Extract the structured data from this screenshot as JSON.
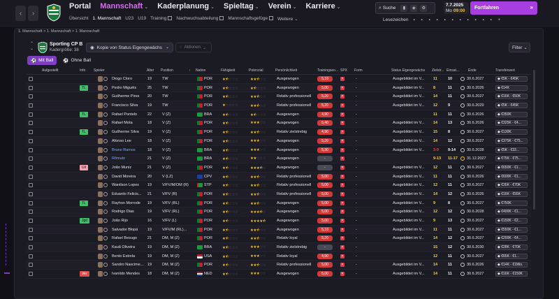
{
  "nav": {
    "items": [
      "Portal",
      "Mannschaft",
      "Kaderplanung",
      "Spieltag",
      "Verein",
      "Karriere"
    ],
    "active": 1,
    "subitems": [
      "Übersicht",
      "1. Mannschaft",
      "U23",
      "U19",
      "Training",
      "Nachwuchsabteilung",
      "Mannschaftsgefüge",
      "Weitere"
    ],
    "search_label": "Suche",
    "date": "7.7.2025",
    "day": "Mo",
    "time": "09:00",
    "continue_label": "Fortfahren",
    "bookmarks_label": "Lesezeichen"
  },
  "breadcrumb": "1. Mannschaft  >  1. Mannschaft  >  1. Mannschaft",
  "team": {
    "name": "Sporting CP B",
    "squad_size_label": "Kadergröße: 38",
    "view_label": "Kopie von Status Eigengewächs",
    "actions_label": "Aktionen",
    "filter_label": "Filter",
    "tab_with_ball": "Mit Ball",
    "tab_without_ball": "Ohne Ball"
  },
  "columns": [
    "Aufgestellt",
    "Info",
    "Spieler",
    "Alter",
    "Position",
    "Nation",
    "Fähigkeit",
    "Potenzial",
    "Persönlichkeit",
    "Trainingseo...",
    "SPX",
    "Form",
    "Status Eigengewächs",
    "Zielstr...",
    "Einsat...",
    "Ende",
    "Transferwert"
  ],
  "colors": {
    "accent": "#a73fe0",
    "active_nav": "#d66cf0",
    "yellow": "#f0c030",
    "red": "#d13a3a"
  },
  "players": [
    {
      "info": "",
      "name": "Diogo Cloro",
      "age": "19",
      "pos": "TW",
      "nat": "POR",
      "flag": "por",
      "abil": 1.5,
      "pot": 2.5,
      "pers": "Ausgewogen",
      "train": "5,10",
      "form": "-",
      "status": "Ausgebildet im V...",
      "zf": "11",
      "zfc": "y",
      "ein": "10",
      "einc": "w",
      "ende": "30.6.2027",
      "tw": "€5K - €45K"
    },
    {
      "info": "TL",
      "name": "Pedro Miguéis",
      "age": "25",
      "pos": "TW",
      "nat": "POR",
      "flag": "por",
      "abil": 1.5,
      "pot": 1.5,
      "pers": "Ausgewogen",
      "train": "5,00",
      "form": "-",
      "status": "Ausgebildet im V...",
      "zf": "8",
      "zfc": "y",
      "ein": "11",
      "einc": "w",
      "ende": "30.6.2026",
      "tw": "€14K"
    },
    {
      "info": "",
      "name": "Guilherme Pires",
      "age": "20",
      "pos": "TW",
      "nat": "POR",
      "flag": "por",
      "abil": 1.5,
      "pot": 2.5,
      "pers": "Relativ professionell",
      "train": "5,20",
      "form": "-",
      "status": "Ausgebildet im V...",
      "zf": "14",
      "zfc": "y",
      "ein": "11",
      "einc": "w",
      "ende": "30.6.2027",
      "tw": "€16K - €50K"
    },
    {
      "info": "",
      "name": "Francisco Silva",
      "age": "19",
      "pos": "TW",
      "nat": "POR",
      "flag": "por",
      "abil": 1,
      "pot": 2.5,
      "pers": "Relativ professionell",
      "train": "5,20",
      "form": "-",
      "status": "Ausgebildet im V...",
      "zf": "12",
      "zfc": "y",
      "ein": "9",
      "einc": "w",
      "ende": "30.6.2029",
      "tw": "€5K - €45K"
    },
    {
      "info": "TL",
      "name": "Rafael Pontelo",
      "age": "22",
      "pos": "V (Z)",
      "nat": "BRA",
      "flag": "bra",
      "abil": 1.5,
      "pot": 1.5,
      "pers": "Ausgewogen",
      "train": "4,90",
      "form": "-",
      "status": "",
      "zf": "11",
      "zfc": "y",
      "ein": "11",
      "einc": "w",
      "ende": "30.6.2026",
      "tw": "€350K"
    },
    {
      "info": "",
      "name": "Rafael Mota",
      "age": "18",
      "pos": "V (Z)",
      "nat": "POR",
      "flag": "por",
      "abil": 1.5,
      "pot": 3,
      "pers": "Ausgewogen",
      "train": "5,40",
      "form": "-",
      "status": "Ausgebildet im V...",
      "zf": "14",
      "zfc": "y",
      "ein": "13",
      "einc": "w",
      "ende": "30.6.2026",
      "tw": "€325K - €4..."
    },
    {
      "info": "TL",
      "name": "Guilherme Silva",
      "age": "19",
      "pos": "V (Z)",
      "nat": "POR",
      "flag": "por",
      "abil": 1.5,
      "pot": 2.5,
      "pers": "Relativ zielstrebig",
      "train": "4,90",
      "form": "-",
      "status": "Ausgebildet im V...",
      "zf": "15",
      "zfc": "y",
      "ein": "8",
      "einc": "w",
      "ende": "30.6.2027",
      "tw": "€130K"
    },
    {
      "info": "",
      "name": "Afonso Lee",
      "age": "18",
      "pos": "V (Z)",
      "nat": "POR",
      "flag": "por",
      "abil": 1.5,
      "pot": 3,
      "pers": "Ausgewogen",
      "train": "5,20",
      "form": "-",
      "status": "Ausgebildet im V...",
      "zf": "14",
      "zfc": "y",
      "ein": "12",
      "einc": "w",
      "ende": "30.6.2027",
      "tw": "€375K - €75..."
    },
    {
      "info": "",
      "name": "Bruno Ramos",
      "age": "18",
      "pos": "V (Z)",
      "nat": "BRA",
      "flag": "bra",
      "abil": 1.5,
      "pot": 3,
      "pers": "Ausgewogen",
      "train": "5,30",
      "form": "-",
      "status": "Ausgebildet im V...",
      "zf": "3-9",
      "zfc": "r",
      "ein": "9-14",
      "einc": "w",
      "ende": "30.6.2028",
      "tw": "€5K - €32..."
    },
    {
      "info": "",
      "name": "Rômulo",
      "age": "21",
      "pos": "V (Z)",
      "nat": "BRA",
      "flag": "bra",
      "abil": 1.5,
      "pot": 2,
      "pers": "Ausgewogen",
      "train": "-",
      "form": "-",
      "status": "",
      "zf": "9-13",
      "zfc": "y",
      "ein": "11-17",
      "einc": "y",
      "ende": "31.12.2027",
      "tw": "€75K - €75..."
    },
    {
      "info": "Url",
      "name": "João Muniz",
      "age": "21",
      "pos": "V (Z)",
      "nat": "POR",
      "flag": "por",
      "abil": 1.5,
      "pot": 3.5,
      "pers": "Ausgewogen",
      "train": "-",
      "form": "-",
      "status": "Ausgebildet im V...",
      "zf": "12",
      "zfc": "y",
      "ein": "11",
      "einc": "w",
      "ende": "30.6.2027",
      "tw": "€650K - €1..."
    },
    {
      "info": "",
      "name": "David Moreira",
      "age": "20",
      "pos": "V (LZ)",
      "nat": "CPV",
      "flag": "cpv",
      "abil": 1.5,
      "pot": 2.5,
      "pers": "Relativ professionell",
      "train": "5,00",
      "form": "-",
      "status": "Ausgebildet im V...",
      "zf": "11",
      "zfc": "y",
      "ein": "11",
      "einc": "w",
      "ende": "30.6.2026",
      "tw": "€600K - €1..."
    },
    {
      "info": "",
      "name": "Wanilson Lopes",
      "age": "19",
      "pos": "V/FV/M/OM (R)",
      "nat": "STP",
      "flag": "stp",
      "abil": 1.5,
      "pot": 2.5,
      "pers": "Relativ professionell",
      "train": "5,00",
      "form": "-",
      "status": "Ausgebildet im V...",
      "zf": "12",
      "zfc": "y",
      "ein": "11",
      "einc": "w",
      "ende": "30.6.2027",
      "tw": "€35K - €70K"
    },
    {
      "info": "",
      "name": "Eduardo Felicis...",
      "age": "21",
      "pos": "V/FV (R)",
      "nat": "POR",
      "flag": "por",
      "abil": 1.5,
      "pot": 2.5,
      "pers": "Relativ professionell",
      "train": "5,00",
      "form": "-",
      "status": "Ausgebildet im V...",
      "zf": "14",
      "zfc": "y",
      "ein": "12",
      "einc": "w",
      "ende": "30.6.2026",
      "tw": "€16K - €55K"
    },
    {
      "info": "TL",
      "name": "Rayhon Morrode",
      "age": "19",
      "pos": "V/FV (RL)",
      "nat": "POR",
      "flag": "por",
      "abil": 1.5,
      "pot": 2.5,
      "pers": "Ausgewogen",
      "train": "5,00",
      "form": "-",
      "status": "Ausgebildet im V...",
      "zf": "9",
      "zfc": "y",
      "ein": "8",
      "einc": "w",
      "ende": "30.6.2027",
      "tw": "€750K"
    },
    {
      "info": "",
      "name": "Rodrigo Dias",
      "age": "19",
      "pos": "V/FV (RL)",
      "nat": "POR",
      "flag": "por",
      "abil": 1.5,
      "pot": 3.5,
      "pers": "Ausgewogen",
      "train": "5,00",
      "form": "-",
      "status": "Ausgebildet im V...",
      "zf": "12",
      "zfc": "y",
      "ein": "12",
      "einc": "w",
      "ende": "30.6.2028",
      "tw": "€400K - €1..."
    },
    {
      "info": "Jgd",
      "name": "João Rijo",
      "age": "16",
      "pos": "V/FV (L)",
      "nat": "POR",
      "flag": "por",
      "abil": 1.5,
      "pot": 4.5,
      "pers": "Ausgewogen",
      "train": "5,00",
      "form": "-",
      "status": "Ausgebildet im V...",
      "zf": "9",
      "zfc": "y",
      "ein": "13",
      "einc": "w",
      "ende": "30.6.2027",
      "tw": "€150K - €2..."
    },
    {
      "info": "",
      "name": "Salvador Blopá",
      "age": "19",
      "pos": "V/FV/M (RL)...",
      "nat": "POR",
      "flag": "por",
      "abil": 1.5,
      "pot": 2.5,
      "pers": "Ausgewogen",
      "train": "5,10",
      "form": "-",
      "status": "Ausgebildet im V...",
      "zf": "11",
      "zfc": "y",
      "ein": "11",
      "einc": "w",
      "ende": "30.6.2027",
      "tw": "€550K - €1..."
    },
    {
      "info": "",
      "name": "Rafael Besugo",
      "age": "21",
      "pos": "DM, M (Z)",
      "nat": "POR",
      "flag": "por",
      "abil": 1.5,
      "pot": 2.5,
      "pers": "Relativ loyal",
      "train": "5,20",
      "form": "-",
      "status": "Ausgebildet im V...",
      "zf": "14",
      "zfc": "y",
      "ein": "12",
      "einc": "w",
      "ende": "30.6.2027",
      "tw": "€200K - €4..."
    },
    {
      "info": "",
      "name": "Kauã Oliveira",
      "age": "19",
      "pos": "DM, M (Z)",
      "nat": "BRA",
      "flag": "bra",
      "abil": 1.5,
      "pot": 3,
      "pers": "Relativ zielstrebig",
      "train": "-",
      "form": "-",
      "status": "",
      "zf": "15",
      "zfc": "y",
      "ein": "12",
      "einc": "w",
      "ende": "30.6.2030",
      "tw": "€28K - €70K"
    },
    {
      "info": "",
      "name": "Bento Estrela",
      "age": "19",
      "pos": "DM, M (Z)",
      "nat": "USA",
      "flag": "usa",
      "abil": 1.5,
      "pot": 3,
      "pers": "Relativ loyal",
      "train": "4,90",
      "form": "-",
      "status": "",
      "zf": "12",
      "zfc": "y",
      "ein": "11",
      "einc": "w",
      "ende": "30.6.2027",
      "tw": "€65K - €1..."
    },
    {
      "info": "",
      "name": "Sandro Nascime...",
      "age": "19",
      "pos": "DM, M (Z)",
      "nat": "POR",
      "flag": "por",
      "abil": 1.5,
      "pot": 2.5,
      "pers": "Relativ professionell",
      "train": "5,00",
      "form": "-",
      "status": "Ausgebildet im V...",
      "zf": "14",
      "zfc": "y",
      "ein": "11",
      "einc": "w",
      "ende": "30.6.2026",
      "tw": "€14K - €1Mio."
    },
    {
      "info": "Ver",
      "name": "Ivanildo Mendes",
      "age": "18",
      "pos": "DM, M (Z)",
      "nat": "NED",
      "flag": "ned",
      "abil": 1.5,
      "pot": 3,
      "pers": "Ausgewogen",
      "train": "5,00",
      "form": "-",
      "status": "Ausgebildet im V...",
      "zf": "14",
      "zfc": "y",
      "ein": "11",
      "einc": "w",
      "ende": "30.6.2027",
      "tw": "€16K - €150K"
    }
  ]
}
